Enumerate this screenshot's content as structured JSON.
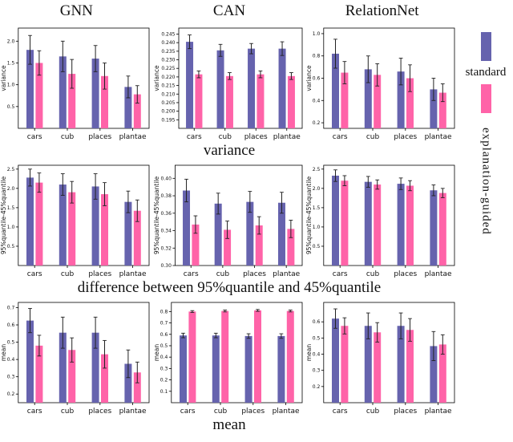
{
  "col_titles": [
    "GNN",
    "CAN",
    "RelationNet"
  ],
  "captions": [
    "variance",
    "difference between 95%quantile and 45%quantile",
    "mean"
  ],
  "legend": {
    "standard_label": "standard",
    "guided_label": "explanation-guided",
    "standard_color": "#6663ae",
    "guided_color": "#ff63a8"
  },
  "chart_data": [
    {
      "type": "bar",
      "model": "GNN",
      "metric": "variance",
      "ylabel": "variance",
      "ylim": [
        0,
        2.3
      ],
      "yticks": [
        "0.5",
        "1.0",
        "1.5",
        "2.0"
      ],
      "categories": [
        "cars",
        "cub",
        "places",
        "plantae"
      ],
      "series": [
        {
          "name": "standard",
          "values": [
            1.8,
            1.65,
            1.6,
            0.95
          ],
          "errors": [
            0.33,
            0.35,
            0.3,
            0.25
          ]
        },
        {
          "name": "explanation-guided",
          "values": [
            1.5,
            1.25,
            1.2,
            0.78
          ],
          "errors": [
            0.28,
            0.33,
            0.3,
            0.2
          ]
        }
      ]
    },
    {
      "type": "bar",
      "model": "CAN",
      "metric": "variance",
      "ylabel": "variance",
      "ylim": [
        0.19,
        0.2485
      ],
      "yticks": [
        "0.195",
        "0.200",
        "0.205",
        "0.210",
        "0.215",
        "0.220",
        "0.225",
        "0.230",
        "0.235",
        "0.240",
        "0.245"
      ],
      "categories": [
        "cars",
        "cub",
        "places",
        "plantae"
      ],
      "series": [
        {
          "name": "standard",
          "values": [
            0.2405,
            0.2355,
            0.2365,
            0.2365
          ],
          "errors": [
            0.004,
            0.0035,
            0.003,
            0.004
          ]
        },
        {
          "name": "explanation-guided",
          "values": [
            0.2215,
            0.2205,
            0.2215,
            0.2205
          ],
          "errors": [
            0.002,
            0.002,
            0.002,
            0.002
          ]
        }
      ]
    },
    {
      "type": "bar",
      "model": "RelationNet",
      "metric": "variance",
      "ylabel": "variance",
      "ylim": [
        0.15,
        1.05
      ],
      "yticks": [
        "0.2",
        "0.4",
        "0.6",
        "0.8",
        "1.0"
      ],
      "categories": [
        "cars",
        "cub",
        "places",
        "plantae"
      ],
      "series": [
        {
          "name": "standard",
          "values": [
            0.82,
            0.68,
            0.66,
            0.5
          ],
          "errors": [
            0.13,
            0.12,
            0.12,
            0.1
          ]
        },
        {
          "name": "explanation-guided",
          "values": [
            0.65,
            0.63,
            0.6,
            0.47
          ],
          "errors": [
            0.1,
            0.1,
            0.12,
            0.08
          ]
        }
      ]
    },
    {
      "type": "bar",
      "model": "GNN",
      "metric": "quantile-difference",
      "ylabel": "95%quantile-45%quantile",
      "ylim": [
        0,
        2.6
      ],
      "yticks": [
        "0.5",
        "1.0",
        "1.5",
        "2.0",
        "2.5"
      ],
      "categories": [
        "cars",
        "cub",
        "places",
        "plantae"
      ],
      "series": [
        {
          "name": "standard",
          "values": [
            2.28,
            2.1,
            2.05,
            1.65
          ],
          "errors": [
            0.22,
            0.28,
            0.33,
            0.28
          ]
        },
        {
          "name": "explanation-guided",
          "values": [
            2.15,
            1.9,
            1.85,
            1.42
          ],
          "errors": [
            0.25,
            0.28,
            0.3,
            0.28
          ]
        }
      ]
    },
    {
      "type": "bar",
      "model": "CAN",
      "metric": "quantile-difference",
      "ylabel": "95%quantile-45%quantile",
      "ylim": [
        0.3,
        0.415
      ],
      "yticks": [
        "0.30",
        "0.32",
        "0.34",
        "0.36",
        "0.38",
        "0.40"
      ],
      "categories": [
        "cars",
        "cub",
        "places",
        "plantae"
      ],
      "series": [
        {
          "name": "standard",
          "values": [
            0.386,
            0.371,
            0.373,
            0.372
          ],
          "errors": [
            0.013,
            0.012,
            0.012,
            0.012
          ]
        },
        {
          "name": "explanation-guided",
          "values": [
            0.347,
            0.341,
            0.346,
            0.342
          ],
          "errors": [
            0.01,
            0.01,
            0.01,
            0.01
          ]
        }
      ]
    },
    {
      "type": "bar",
      "model": "RelationNet",
      "metric": "quantile-difference",
      "ylabel": "95%quantile-45%quantile",
      "ylim": [
        0,
        2.6
      ],
      "yticks": [
        "0.5",
        "1.0",
        "1.5",
        "2.0",
        "2.5"
      ],
      "categories": [
        "cars",
        "cub",
        "places",
        "plantae"
      ],
      "series": [
        {
          "name": "standard",
          "values": [
            2.33,
            2.17,
            2.12,
            1.95
          ],
          "errors": [
            0.15,
            0.14,
            0.15,
            0.14
          ]
        },
        {
          "name": "explanation-guided",
          "values": [
            2.2,
            2.1,
            2.07,
            1.88
          ],
          "errors": [
            0.13,
            0.12,
            0.13,
            0.12
          ]
        }
      ]
    },
    {
      "type": "bar",
      "model": "GNN",
      "metric": "mean",
      "ylabel": "mean",
      "ylim": [
        0.15,
        0.73
      ],
      "yticks": [
        "0.2",
        "0.3",
        "0.4",
        "0.5",
        "0.6",
        "0.7"
      ],
      "categories": [
        "cars",
        "cub",
        "places",
        "plantae"
      ],
      "series": [
        {
          "name": "standard",
          "values": [
            0.625,
            0.555,
            0.555,
            0.375
          ],
          "errors": [
            0.07,
            0.09,
            0.09,
            0.08
          ]
        },
        {
          "name": "explanation-guided",
          "values": [
            0.48,
            0.455,
            0.43,
            0.325
          ],
          "errors": [
            0.06,
            0.07,
            0.08,
            0.06
          ]
        }
      ]
    },
    {
      "type": "bar",
      "model": "CAN",
      "metric": "mean",
      "ylabel": "mean",
      "ylim": [
        0,
        0.88
      ],
      "yticks": [
        "0.1",
        "0.2",
        "0.3",
        "0.4",
        "0.5",
        "0.6",
        "0.7",
        "0.8"
      ],
      "categories": [
        "cars",
        "cub",
        "places",
        "plantae"
      ],
      "series": [
        {
          "name": "standard",
          "values": [
            0.59,
            0.59,
            0.585,
            0.585
          ],
          "errors": [
            0.02,
            0.02,
            0.02,
            0.02
          ]
        },
        {
          "name": "explanation-guided",
          "values": [
            0.8,
            0.805,
            0.81,
            0.805
          ],
          "errors": [
            0.008,
            0.008,
            0.008,
            0.008
          ]
        }
      ]
    },
    {
      "type": "bar",
      "model": "RelationNet",
      "metric": "mean",
      "ylabel": "mean",
      "ylim": [
        0.1,
        0.72
      ],
      "yticks": [
        "0.2",
        "0.3",
        "0.4",
        "0.5",
        "0.6"
      ],
      "categories": [
        "cars",
        "cub",
        "places",
        "plantae"
      ],
      "series": [
        {
          "name": "standard",
          "values": [
            0.62,
            0.575,
            0.575,
            0.45
          ],
          "errors": [
            0.06,
            0.08,
            0.08,
            0.09
          ]
        },
        {
          "name": "explanation-guided",
          "values": [
            0.575,
            0.535,
            0.55,
            0.46
          ],
          "errors": [
            0.05,
            0.06,
            0.07,
            0.06
          ]
        }
      ]
    }
  ]
}
